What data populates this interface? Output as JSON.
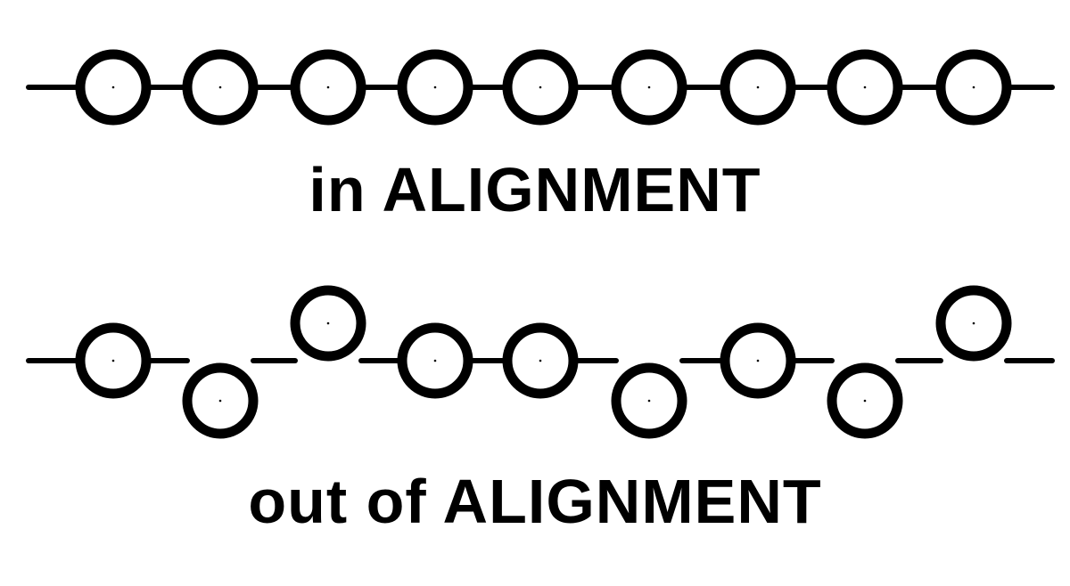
{
  "diagram": {
    "ink_color": "#000000",
    "background_color": "#ffffff",
    "aligned": {
      "caption": "in ALIGNMENT",
      "ring_count": 9,
      "offsets": [
        0,
        0,
        0,
        0,
        0,
        0,
        0,
        0,
        0
      ]
    },
    "misaligned": {
      "caption": "out of ALIGNMENT",
      "ring_count": 9,
      "offsets": [
        "level",
        "low",
        "high",
        "level",
        "level",
        "low",
        "level",
        "low",
        "high"
      ]
    }
  }
}
